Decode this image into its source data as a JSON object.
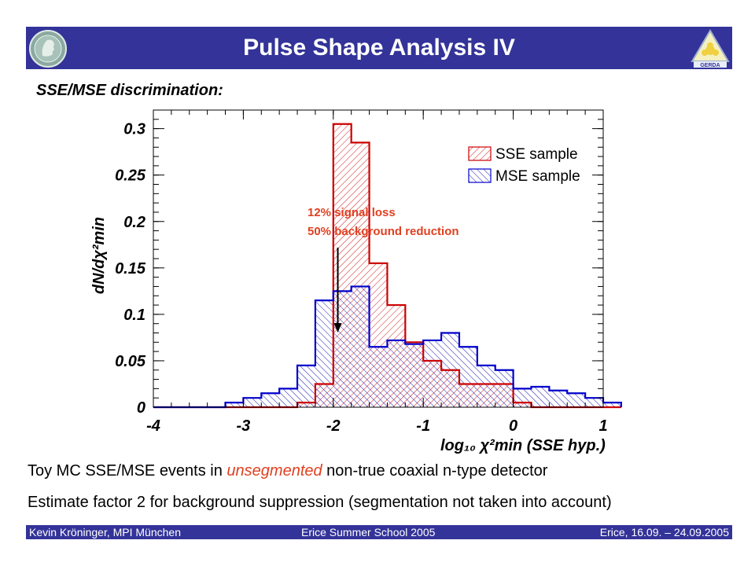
{
  "slide": {
    "title": "Pulse Shape Analysis IV",
    "subtitle": "SSE/MSE discrimination:",
    "logo_right_text": "GERDA",
    "text_line1_a": "Toy MC SSE/MSE events in ",
    "text_line1_highlight": "unsegmented",
    "text_line1_b": " non-true coaxial n-type detector",
    "text_line2": "Estimate factor 2 for background suppression (segmentation not taken into account)",
    "footer_left": "Kevin Kröninger, MPI München",
    "footer_center": "Erice Summer School 2005",
    "footer_right": "Erice, 16.09. – 24.09.2005",
    "colors": {
      "bar": "#333399",
      "sse": "#cc0000",
      "mse": "#0000cc",
      "annotation": "#e04020"
    }
  },
  "chart_data": {
    "type": "histogram",
    "ylabel": "dN/dχ²min",
    "xlabel": "log₁₀ χ²min (SSE hyp.)",
    "xlim": [
      -4,
      1
    ],
    "ylim": [
      0,
      0.32
    ],
    "x_ticks": [
      "-4",
      "-3",
      "-2",
      "-1",
      "0",
      "1"
    ],
    "y_ticks": [
      "0",
      "0.05",
      "0.1",
      "0.15",
      "0.2",
      "0.25",
      "0.3"
    ],
    "bin_width": 0.2,
    "bin_start": -4,
    "legend": [
      "SSE sample",
      "MSE sample"
    ],
    "series": [
      {
        "name": "SSE sample",
        "values": [
          0,
          0,
          0,
          0,
          0,
          0,
          0,
          0,
          0.005,
          0.025,
          0.305,
          0.285,
          0.155,
          0.11,
          0.07,
          0.05,
          0.04,
          0.025,
          0.025,
          0.025,
          0.005,
          0,
          0,
          0,
          0,
          0
        ]
      },
      {
        "name": "MSE sample",
        "values": [
          0,
          0,
          0,
          0,
          0.005,
          0.01,
          0.015,
          0.02,
          0.045,
          0.115,
          0.125,
          0.13,
          0.065,
          0.072,
          0.068,
          0.072,
          0.08,
          0.065,
          0.045,
          0.04,
          0.02,
          0.022,
          0.018,
          0.015,
          0.01,
          0.005
        ]
      }
    ],
    "annotation": {
      "lines": [
        "12% signal loss",
        "50% background reduction"
      ],
      "arrow_x": -1.95
    }
  }
}
